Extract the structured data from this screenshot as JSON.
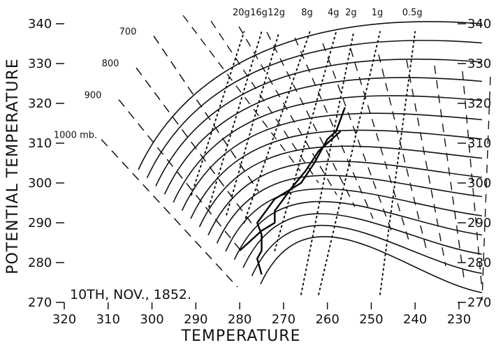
{
  "chart_data": {
    "type": "line",
    "title": "",
    "xlabel": "TEMPERATURE",
    "ylabel": "POTENTIAL TEMPERATURE",
    "annotation": "10TH, NOV., 1852.",
    "x_reversed": true,
    "xlim": [
      320,
      230
    ],
    "ylim": [
      270,
      340
    ],
    "x_ticks": [
      {
        "value": 320,
        "label": "320"
      },
      {
        "value": 310,
        "label": "310"
      },
      {
        "value": 300,
        "label": "300"
      },
      {
        "value": 290,
        "label": "290"
      },
      {
        "value": 280,
        "label": "280"
      },
      {
        "value": 270,
        "label": "270"
      },
      {
        "value": 260,
        "label": "260"
      },
      {
        "value": 250,
        "label": "250"
      },
      {
        "value": 240,
        "label": "240"
      },
      {
        "value": 230,
        "label": "230"
      }
    ],
    "y_ticks_left": [
      {
        "value": 340,
        "label": "340"
      },
      {
        "value": 330,
        "label": "330"
      },
      {
        "value": 320,
        "label": "320"
      },
      {
        "value": 310,
        "label": "310"
      },
      {
        "value": 300,
        "label": "300"
      },
      {
        "value": 290,
        "label": "290"
      },
      {
        "value": 280,
        "label": "280"
      },
      {
        "value": 270,
        "label": "270"
      }
    ],
    "y_ticks_right": [
      {
        "value": 340,
        "label": "340"
      },
      {
        "value": 330,
        "label": "330"
      },
      {
        "value": 320,
        "label": "320"
      },
      {
        "value": 310,
        "label": "310"
      },
      {
        "value": 300,
        "label": "300"
      },
      {
        "value": 290,
        "label": "290"
      },
      {
        "value": 280,
        "label": "280"
      },
      {
        "value": 270,
        "label": "270"
      }
    ],
    "isobars": [
      {
        "label": "700",
        "theta": [
          304,
          338
        ]
      },
      {
        "label": "800",
        "theta": [
          296,
          330
        ]
      },
      {
        "label": "900",
        "theta": [
          288,
          322
        ]
      },
      {
        "label": "1000 mb.",
        "theta": [
          280,
          312
        ]
      }
    ],
    "mixing_ratio_lines": [
      {
        "label": "20g",
        "ends": [
          [
            291,
            297
          ],
          [
            279,
            338
          ]
        ]
      },
      {
        "label": "16g",
        "ends": [
          [
            287,
            294
          ],
          [
            275,
            338
          ]
        ]
      },
      {
        "label": "12g",
        "ends": [
          [
            283,
            292
          ],
          [
            271,
            338
          ]
        ]
      },
      {
        "label": "8g",
        "ends": [
          [
            279,
            290
          ],
          [
            264,
            338
          ]
        ]
      },
      {
        "label": "4g",
        "ends": [
          [
            272,
            283
          ],
          [
            258,
            338
          ]
        ]
      },
      {
        "label": "2g",
        "ends": [
          [
            266,
            272
          ],
          [
            254,
            338
          ]
        ]
      },
      {
        "label": "1g",
        "ends": [
          [
            262,
            272
          ],
          [
            248,
            338
          ]
        ]
      },
      {
        "label": "0.5g",
        "ends": [
          [
            248,
            272
          ],
          [
            240,
            338
          ]
        ]
      }
    ],
    "series": [
      {
        "values": [
          [
            275,
            277
          ],
          [
            276,
            281
          ],
          [
            275,
            283
          ],
          [
            275,
            287
          ],
          [
            276,
            290
          ],
          [
            274,
            293
          ],
          [
            272,
            296
          ],
          [
            269,
            298
          ],
          [
            266,
            300
          ],
          [
            263,
            305
          ],
          [
            260,
            311
          ],
          [
            258,
            313
          ],
          [
            257,
            316
          ],
          [
            256,
            319
          ]
        ]
      },
      {
        "values": [
          [
            280,
            283
          ],
          [
            278,
            285
          ],
          [
            275,
            288
          ],
          [
            272,
            290
          ],
          [
            272,
            293
          ],
          [
            270,
            296
          ],
          [
            268,
            299
          ],
          [
            265,
            303
          ],
          [
            262,
            308
          ],
          [
            259,
            311
          ],
          [
            257,
            313
          ]
        ]
      }
    ]
  }
}
